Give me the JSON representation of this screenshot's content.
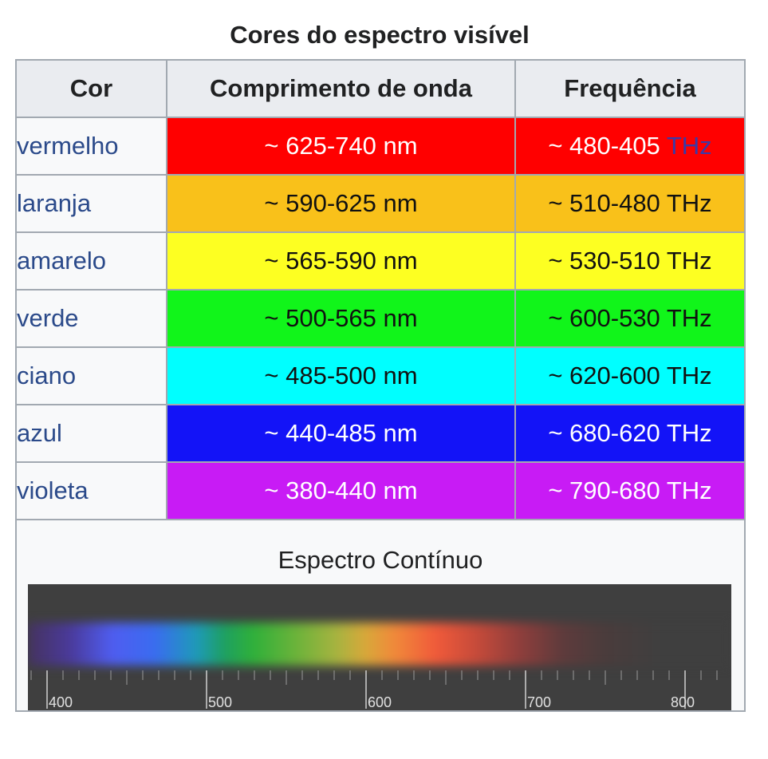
{
  "caption": "Cores do espectro visível",
  "headers": {
    "cor": "Cor",
    "comprimento": "Comprimento de onda",
    "frequencia": "Frequência"
  },
  "rows": [
    {
      "cor": "vermelho",
      "comprimento": "~ 625-740 nm",
      "freq_prefix": "~ 480-405",
      "freq_unit": "THz",
      "bg": "#ff0000",
      "text": "#ffffff"
    },
    {
      "cor": "laranja",
      "comprimento": "~ 590-625 nm",
      "freq_prefix": "~ 510-480",
      "freq_unit": "THz",
      "bg": "#f9c11a",
      "text": "#111111"
    },
    {
      "cor": "amarelo",
      "comprimento": "~ 565-590 nm",
      "freq_prefix": "~ 530-510",
      "freq_unit": "THz",
      "bg": "#fdff22",
      "text": "#111111"
    },
    {
      "cor": "verde",
      "comprimento": "~ 500-565 nm",
      "freq_prefix": "~ 600-530",
      "freq_unit": "THz",
      "bg": "#11f51a",
      "text": "#111111"
    },
    {
      "cor": "ciano",
      "comprimento": "~ 485-500 nm",
      "freq_prefix": "~ 620-600",
      "freq_unit": "THz",
      "bg": "#00ffff",
      "text": "#111111"
    },
    {
      "cor": "azul",
      "comprimento": "~ 440-485 nm",
      "freq_prefix": "~ 680-620",
      "freq_unit": "THz",
      "bg": "#1313f7",
      "text": "#ffffff"
    },
    {
      "cor": "violeta",
      "comprimento": "~ 380-440 nm",
      "freq_prefix": "~ 790-680",
      "freq_unit": "THz",
      "bg": "#c81bf5",
      "text": "#ffffff"
    }
  ],
  "spectrum": {
    "title": "Espectro Contínuo",
    "scale_labels": [
      "400",
      "500",
      "600",
      "700",
      "800"
    ]
  }
}
